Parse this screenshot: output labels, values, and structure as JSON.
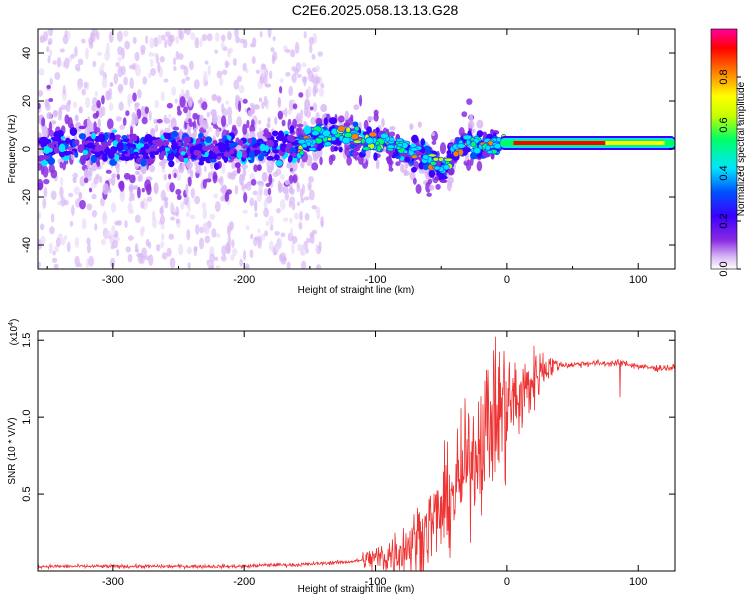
{
  "title": "C2E6.2025.058.13.13.G28",
  "chart_data": [
    {
      "type": "heatmap",
      "name": "spectrogram",
      "xlabel": "Height of straight line (km)",
      "ylabel": "Frequency (Hz)",
      "xlim": [
        -357,
        128
      ],
      "ylim": [
        -50,
        50
      ],
      "xticks": [
        -300,
        -200,
        -100,
        0,
        100
      ],
      "xtick_labels": [
        "-300",
        "-200",
        "-100",
        "0",
        "100"
      ],
      "yticks": [
        -40,
        -20,
        0,
        20,
        40
      ],
      "ytick_labels": [
        "-40",
        "-20",
        "0",
        "20",
        "40"
      ],
      "colorbar": {
        "label": "Normalized spectral amplitude",
        "range": [
          0,
          1
        ],
        "ticks": [
          0.0,
          0.2,
          0.4,
          0.6,
          0.8
        ],
        "tick_labels": [
          "0.0",
          "0.2",
          "0.4",
          "0.6",
          "0.8"
        ],
        "colors": [
          "#ffffff",
          "#d9b8f5",
          "#8a2be2",
          "#3b00ff",
          "#0050ff",
          "#00e5ff",
          "#00ff66",
          "#c8ff00",
          "#ffff00",
          "#ff8000",
          "#ff0000",
          "#ff00a0"
        ]
      },
      "centerline": {
        "x": [
          -357,
          -300,
          -250,
          -200,
          -160,
          -150,
          -130,
          -110,
          -95,
          -80,
          -65,
          -55,
          -48,
          -40,
          -30,
          -20,
          -10,
          -5,
          0,
          20,
          60,
          100,
          128
        ],
        "y": [
          1,
          1,
          0,
          0,
          1,
          4,
          6,
          4,
          3,
          1,
          -3,
          -6,
          -8,
          -2,
          3,
          2,
          2,
          2,
          2,
          2,
          2,
          2,
          3
        ]
      }
    },
    {
      "type": "line",
      "name": "snr",
      "xlabel": "Height of straight line (km)",
      "ylabel": "SNR (10 * V/V)",
      "scale_label": "(x10",
      "scale_exponent": "4",
      "scale_close": ")",
      "xlim": [
        -357,
        128
      ],
      "ylim": [
        0,
        1.56
      ],
      "xticks": [
        -300,
        -200,
        -100,
        0,
        100
      ],
      "xtick_labels": [
        "-300",
        "-200",
        "-100",
        "0",
        "100"
      ],
      "yticks": [
        0.5,
        1.0,
        1.5
      ],
      "ytick_labels": [
        "0.5",
        "1.0",
        "1.5"
      ],
      "series_color": "#ee3333",
      "x": [
        -357,
        -300,
        -250,
        -200,
        -180,
        -160,
        -140,
        -120,
        -100,
        -90,
        -80,
        -70,
        -60,
        -50,
        -45,
        -40,
        -35,
        -30,
        -25,
        -20,
        -15,
        -10,
        -5,
        0,
        5,
        10,
        15,
        20,
        25,
        30,
        40,
        50,
        60,
        70,
        80,
        90,
        100,
        110,
        128
      ],
      "y": [
        0.03,
        0.03,
        0.03,
        0.03,
        0.04,
        0.04,
        0.05,
        0.06,
        0.08,
        0.1,
        0.14,
        0.2,
        0.28,
        0.38,
        0.44,
        0.52,
        0.6,
        0.68,
        0.78,
        0.86,
        0.94,
        1.0,
        1.04,
        1.08,
        1.1,
        1.12,
        1.18,
        1.24,
        1.3,
        1.33,
        1.34,
        1.34,
        1.35,
        1.35,
        1.35,
        1.35,
        1.33,
        1.32,
        1.32
      ]
    }
  ]
}
